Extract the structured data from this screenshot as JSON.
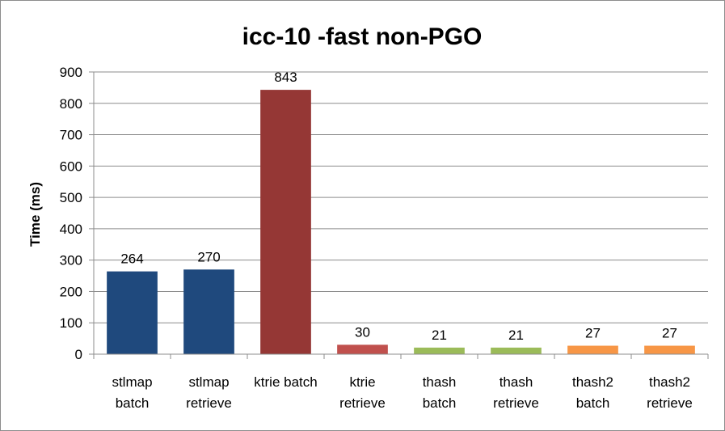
{
  "chart_data": {
    "type": "bar",
    "title": "icc-10 -fast non-PGO",
    "xlabel": "",
    "ylabel": "Time (ms)",
    "ylim": [
      0,
      900
    ],
    "ytick_step": 100,
    "grid": true,
    "legend": "none",
    "categories": [
      [
        "stlmap",
        "batch"
      ],
      [
        "stlmap",
        "retrieve"
      ],
      [
        "ktrie batch"
      ],
      [
        "ktrie",
        "retrieve"
      ],
      [
        "thash",
        "batch"
      ],
      [
        "thash",
        "retrieve"
      ],
      [
        "thash2",
        "batch"
      ],
      [
        "thash2",
        "retrieve"
      ]
    ],
    "values": [
      264,
      270,
      843,
      30,
      21,
      21,
      27,
      27
    ],
    "colors": [
      "#1f497d",
      "#1f497d",
      "#953735",
      "#c0504d",
      "#9bbb59",
      "#9bbb59",
      "#f79646",
      "#f79646"
    ]
  }
}
